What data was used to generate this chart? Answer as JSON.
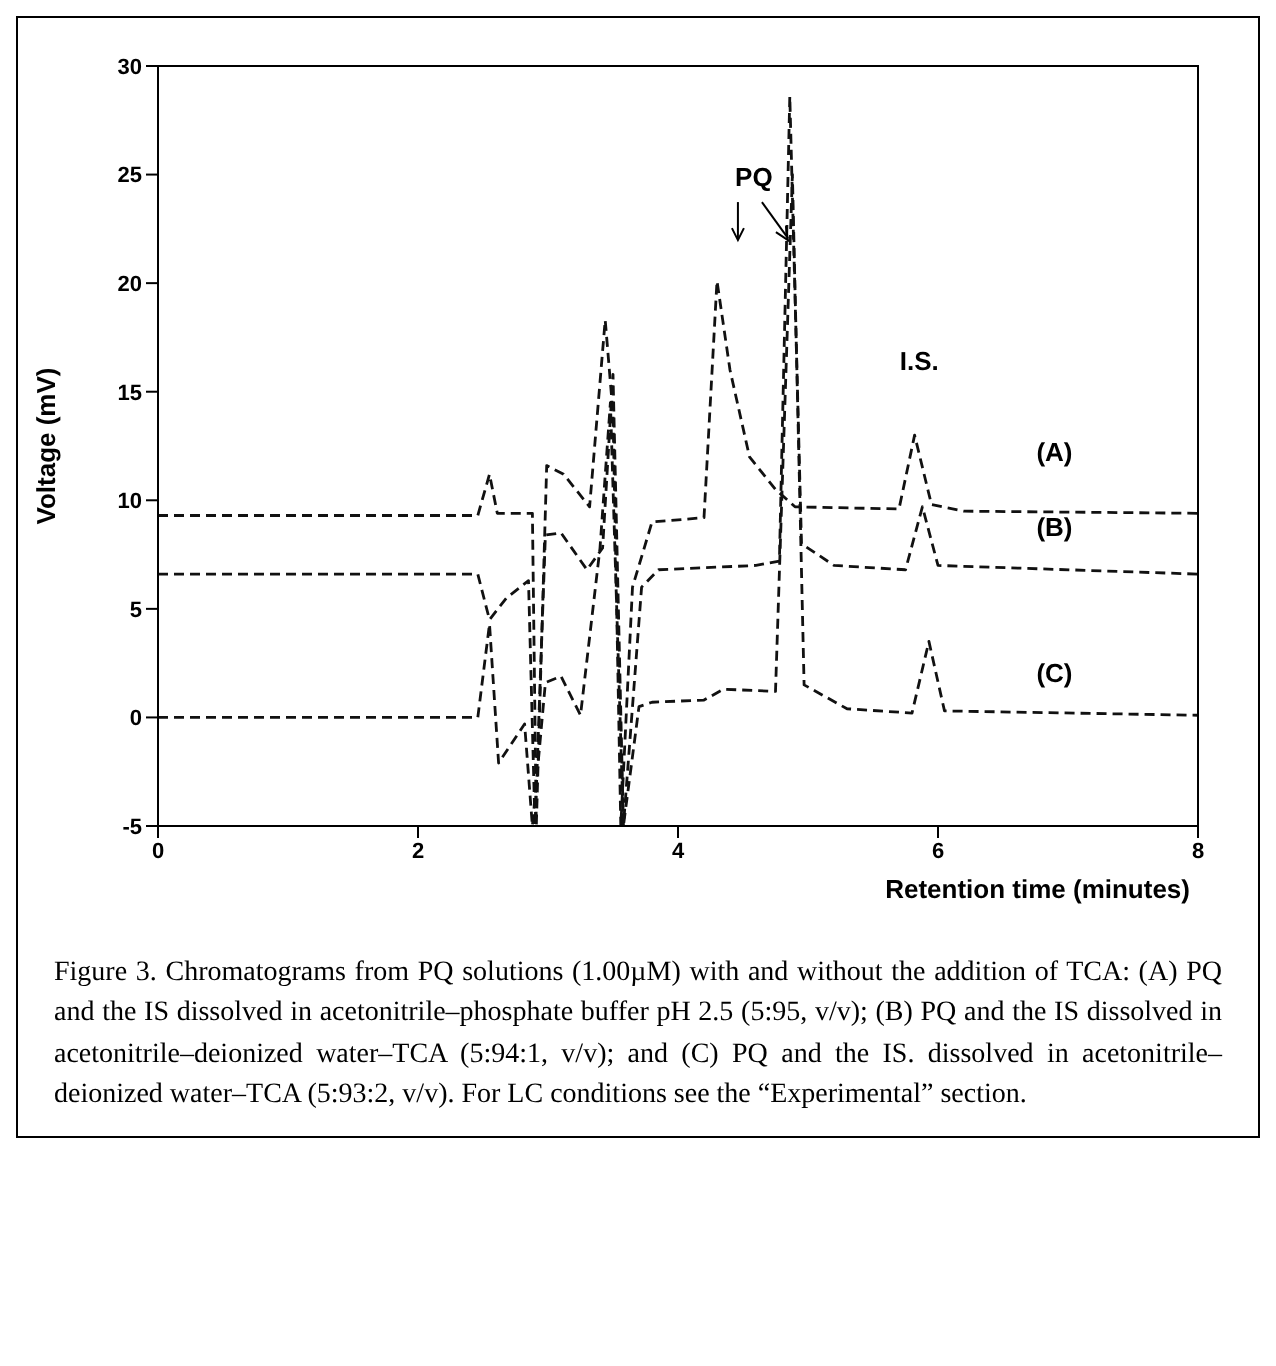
{
  "chart_data": {
    "type": "line",
    "xlabel": "Retention time (minutes)",
    "ylabel": "Voltage (mV)",
    "xlim": [
      0,
      8
    ],
    "xticks": [
      0,
      2,
      4,
      6,
      8
    ],
    "ylim": [
      -5,
      30
    ],
    "yticks": [
      -5,
      0,
      5,
      10,
      15,
      20,
      25,
      30
    ],
    "grid": false,
    "legend": false,
    "marker": "none",
    "line_style": "dashed",
    "series": [
      {
        "color": "#111111",
        "x": [
          0,
          2.46,
          2.55,
          2.61,
          2.88,
          2.91,
          2.99,
          3.12,
          3.32,
          3.44,
          3.5,
          3.56,
          3.65,
          3.8,
          4.2,
          4.3,
          4.4,
          4.55,
          4.75,
          4.9,
          5.7,
          5.82,
          5.95,
          6.2,
          8
        ],
        "values": [
          9.3,
          9.3,
          11.2,
          9.4,
          9.4,
          -5,
          11.6,
          11.2,
          9.7,
          18.3,
          14,
          -5,
          6,
          9.0,
          9.2,
          20.1,
          16,
          12,
          10.5,
          9.7,
          9.6,
          13.0,
          9.8,
          9.5,
          9.4
        ]
      },
      {
        "color": "#111111",
        "x": [
          0,
          2.46,
          2.55,
          2.68,
          2.85,
          2.9,
          2.98,
          3.1,
          3.3,
          3.42,
          3.5,
          3.58,
          3.72,
          3.85,
          4.6,
          4.78,
          4.86,
          4.95,
          5.2,
          5.75,
          5.88,
          6.0,
          8
        ],
        "values": [
          6.6,
          6.6,
          4.5,
          5.5,
          6.3,
          -5,
          8.4,
          8.5,
          6.8,
          7.8,
          15.8,
          -5,
          6.0,
          6.8,
          7.0,
          7.2,
          28.6,
          8.0,
          7.0,
          6.8,
          9.7,
          7.0,
          6.6
        ]
      },
      {
        "color": "#111111",
        "x": [
          0,
          2.46,
          2.55,
          2.62,
          2.82,
          2.88,
          2.98,
          3.1,
          3.25,
          3.4,
          3.48,
          3.58,
          3.7,
          3.8,
          4.2,
          4.35,
          4.75,
          4.88,
          4.97,
          5.3,
          5.8,
          5.93,
          6.05,
          8
        ],
        "values": [
          0,
          0,
          4.3,
          -2.1,
          -0.3,
          -5,
          1.6,
          1.9,
          0.1,
          7.8,
          14.5,
          -5,
          0.5,
          0.7,
          0.8,
          1.3,
          1.2,
          25,
          1.5,
          0.4,
          0.2,
          3.5,
          0.3,
          0.1
        ]
      }
    ],
    "annotations": [
      "PQ",
      "I.S.",
      "(A)",
      "(B)",
      "(C)",
      "Figure 3. Chromatograms from PQ solutions (1.00µM) with and without the addition of TCA: (A) PQ and the IS dissolved in acetonitrile–phosphate buffer pH 2.5 (5:95, v/v); (B) PQ and the IS dissolved in acetonitrile–deionized water–TCA (5:94:1, v/v); and (C) PQ and the IS. dissolved in acetonitrile–deionized water–TCA (5:93:2, v/v). For LC conditions see the “Experimental” section."
    ]
  }
}
